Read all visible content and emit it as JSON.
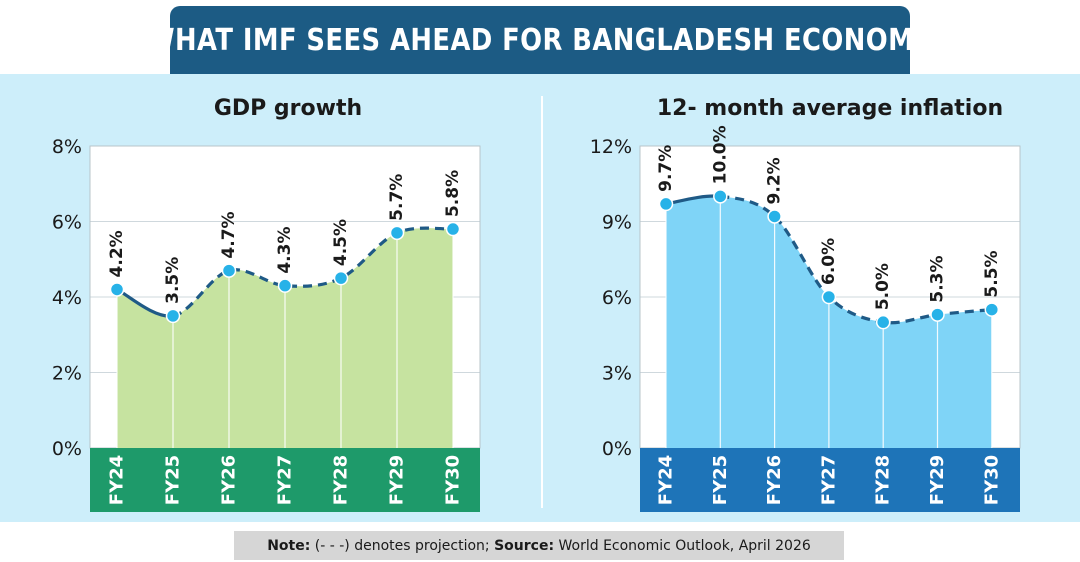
{
  "header": {
    "title": "WHAT IMF SEES AHEAD FOR BANGLADESH ECONOMY"
  },
  "note": {
    "note_label": "Note:",
    "note_text": " (- - -) denotes projection; ",
    "source_label": "Source:",
    "source_text": " World Economic Outlook, April 2026"
  },
  "chart_data": [
    {
      "type": "area",
      "title": "GDP growth",
      "categories": [
        "FY24",
        "FY25",
        "FY26",
        "FY27",
        "FY28",
        "FY29",
        "FY30"
      ],
      "values": [
        4.2,
        3.5,
        4.7,
        4.3,
        4.5,
        5.7,
        5.8
      ],
      "labels": [
        "4.2%",
        "3.5%",
        "4.7%",
        "4.3%",
        "4.5%",
        "5.7%",
        "5.8%"
      ],
      "yticks": [
        "0%",
        "2%",
        "4%",
        "6%",
        "8%"
      ],
      "ylim": [
        0,
        8
      ],
      "actual_count": 2,
      "grid": true,
      "colors": {
        "fill": "#c6e3a0",
        "line": "#1f5a86",
        "point": "#27b2e8",
        "axis_band": "#1e9a6a"
      }
    },
    {
      "type": "area",
      "title": "12- month average inflation",
      "categories": [
        "FY24",
        "FY25",
        "FY26",
        "FY27",
        "FY28",
        "FY29",
        "FY30"
      ],
      "values": [
        9.7,
        10.0,
        9.2,
        6.0,
        5.0,
        5.3,
        5.5
      ],
      "labels": [
        "9.7%",
        "10.0%",
        "9.2%",
        "6.0%",
        "5.0%",
        "5.3%",
        "5.5%"
      ],
      "yticks": [
        "0%",
        "3%",
        "6%",
        "9%",
        "12%"
      ],
      "ylim": [
        0,
        12
      ],
      "actual_count": 2,
      "grid": true,
      "colors": {
        "fill": "#7fd4f7",
        "line": "#1f5a86",
        "point": "#27b2e8",
        "axis_band": "#1e74b8"
      }
    }
  ]
}
